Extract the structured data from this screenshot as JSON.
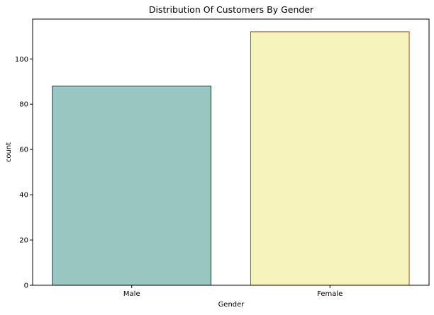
{
  "chart_data": {
    "type": "bar",
    "title": "Distribution Of Customers By Gender",
    "xlabel": "Gender",
    "ylabel": "count",
    "categories": [
      "Male",
      "Female"
    ],
    "values": [
      88,
      112
    ],
    "ylim": [
      0,
      117.6
    ],
    "yticks": [
      0,
      20,
      40,
      60,
      80,
      100
    ],
    "grid": false,
    "bar_colors": [
      "#98c8c0",
      "#f6f4bc"
    ],
    "bar_edge_colors": [
      "#16305e",
      "#a0521c"
    ]
  }
}
